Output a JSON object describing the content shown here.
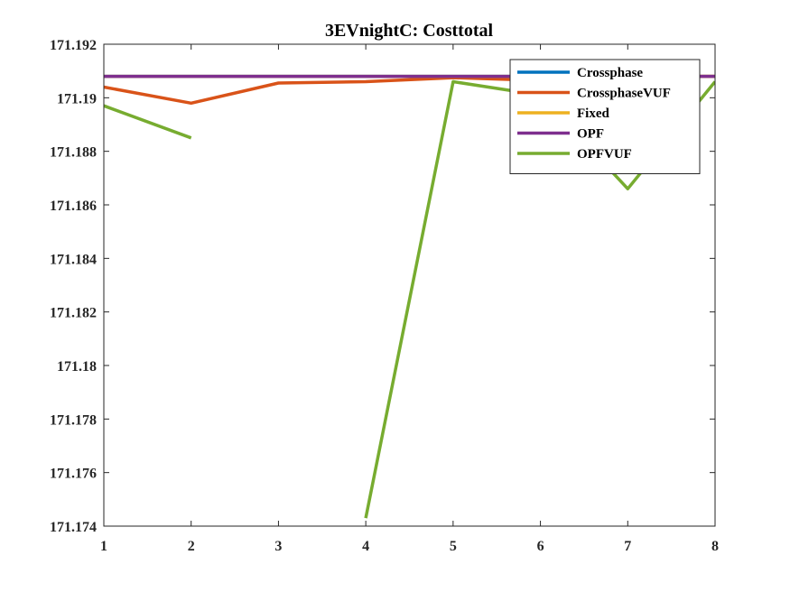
{
  "chart_data": {
    "type": "line",
    "title": "3EVnightC: Costtotal",
    "xlabel": "",
    "ylabel": "",
    "x": [
      1,
      2,
      3,
      4,
      5,
      6,
      7,
      8
    ],
    "xlim": [
      1,
      8
    ],
    "ylim": [
      171.174,
      171.192
    ],
    "xticks": [
      "1",
      "2",
      "3",
      "4",
      "5",
      "6",
      "7",
      "8"
    ],
    "yticks": [
      "171.174",
      "171.176",
      "171.178",
      "171.18",
      "171.182",
      "171.184",
      "171.186",
      "171.188",
      "171.19",
      "171.192"
    ],
    "grid": false,
    "legend_position": "top-right",
    "series": [
      {
        "name": "Crossphase",
        "color": "#0072BD",
        "values": [
          171.1908,
          171.1908,
          171.1908,
          171.1908,
          171.1908,
          171.1908,
          171.1908,
          171.1908
        ]
      },
      {
        "name": "CrossphaseVUF",
        "color": "#D95319",
        "values": [
          171.1904,
          171.1898,
          171.19055,
          171.1906,
          171.19075,
          171.19065,
          171.1908,
          171.1908
        ]
      },
      {
        "name": "Fixed",
        "color": "#EDB120",
        "values": [
          171.1908,
          171.1908,
          171.1908,
          171.1908,
          171.1908,
          171.1908,
          171.1908,
          171.1908
        ]
      },
      {
        "name": "OPF",
        "color": "#7E2F8E",
        "values": [
          171.1908,
          171.1908,
          171.1908,
          171.1908,
          171.1908,
          171.1908,
          171.1908,
          171.1908
        ]
      },
      {
        "name": "OPFVUF",
        "color": "#77AC30",
        "values": [
          171.1897,
          171.1885,
          null,
          171.1743,
          171.1906,
          171.1901,
          171.1866,
          171.1906
        ]
      }
    ]
  }
}
